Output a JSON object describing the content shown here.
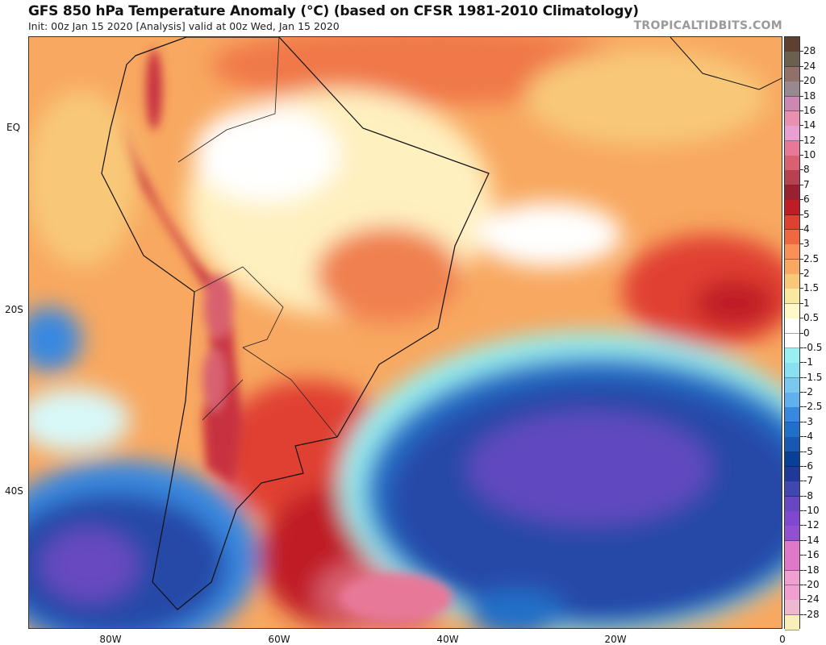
{
  "header": {
    "title": "GFS 850 hPa Temperature Anomaly (°C) (based on CFSR 1981-2010 Climatology)",
    "subtitle": "Init: 00z Jan 15 2020   [Analysis]   valid at 00z Wed, Jan 15 2020",
    "watermark": "TROPICALTIDBITS.COM"
  },
  "axes": {
    "lat_labels": [
      "EQ",
      "20S",
      "40S"
    ],
    "lon_labels": [
      "80W",
      "60W",
      "40W",
      "20W",
      "0"
    ]
  },
  "colorbar": {
    "labels": [
      "28",
      "24",
      "20",
      "18",
      "16",
      "14",
      "12",
      "10",
      "8",
      "7",
      "6",
      "5",
      "4",
      "3",
      "2.5",
      "2",
      "1.5",
      "1",
      "0.5",
      "0",
      "-0.5",
      "-1",
      "-1.5",
      "-2",
      "-2.5",
      "-3",
      "-4",
      "-5",
      "-6",
      "-7",
      "-8",
      "-10",
      "-12",
      "-14",
      "-16",
      "-18",
      "-20",
      "-24",
      "-28"
    ],
    "colors": [
      "#5e4030",
      "#6b6050",
      "#907068",
      "#988890",
      "#cc88b0",
      "#e890b0",
      "#e8a0d0",
      "#e87898",
      "#d86070",
      "#b84050",
      "#982030",
      "#c01c28",
      "#e04030",
      "#f06840",
      "#f89058",
      "#f8a860",
      "#f8c878",
      "#f8e8a0",
      "#fff8c8",
      "#ffffff",
      "#ffffff",
      "#98f0f0",
      "#88e0f0",
      "#78c8f0",
      "#60b0f0",
      "#3888e0",
      "#2070c8",
      "#1858b0",
      "#084098",
      "#203898",
      "#4048b0",
      "#6848c0",
      "#8048d0",
      "#9050d0",
      "#e078c8",
      "#e078c8",
      "#f0a0d0",
      "#f0a0d0",
      "#f0b8d0",
      "#f8f0b8"
    ]
  }
}
